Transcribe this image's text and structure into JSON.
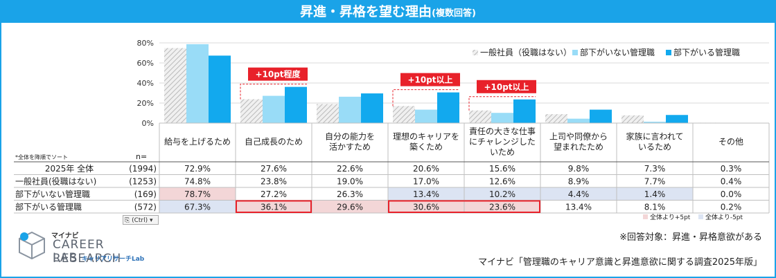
{
  "title": "昇進・昇格を望む理由",
  "title_sub": "(複数回答)",
  "sort_note": "*全体を降順でソート",
  "n_label": "n=",
  "chart_data": {
    "type": "bar",
    "ylim": [
      0,
      80
    ],
    "yticks": [
      "0%",
      "20%",
      "40%",
      "60%",
      "80%"
    ],
    "legend_position": "top-right",
    "categories": [
      [
        "給与を上げるため"
      ],
      [
        "自己成長のため"
      ],
      [
        "自分の能力を",
        "活かすため"
      ],
      [
        "理想のキャリアを",
        "築くため"
      ],
      [
        "責任の大きな仕事",
        "にチャレンジした",
        "いため"
      ],
      [
        "上司や同僚から",
        "望まれたため"
      ],
      [
        "家族に言われて",
        "いるため"
      ],
      [
        "その他"
      ]
    ],
    "series": [
      {
        "name": "一般社員（役職はない）",
        "color": "#cccccc",
        "values": [
          74.8,
          23.8,
          19.0,
          17.0,
          12.6,
          8.9,
          7.7,
          0.4
        ]
      },
      {
        "name": "部下がいない管理職",
        "color": "#99dcf7",
        "values": [
          78.7,
          27.2,
          26.3,
          13.4,
          10.2,
          4.4,
          1.4,
          0.0
        ]
      },
      {
        "name": "部下がいる管理職",
        "color": "#12a9ee",
        "values": [
          67.3,
          36.1,
          29.6,
          30.6,
          23.6,
          13.4,
          8.1,
          0.2
        ]
      }
    ],
    "annotations": [
      {
        "category_index": 1,
        "text": "+10pt程度"
      },
      {
        "category_index": 3,
        "text": "+10pt以上"
      },
      {
        "category_index": 4,
        "text": "+10pt以上"
      }
    ]
  },
  "table": {
    "rows": [
      {
        "label": "2025年 全体",
        "n": "(1994)",
        "values": [
          "72.9%",
          "27.6%",
          "22.6%",
          "20.6%",
          "15.6%",
          "9.8%",
          "7.3%",
          "0.3%"
        ],
        "hl": [
          "",
          "",
          "",
          "",
          "",
          "",
          "",
          ""
        ]
      },
      {
        "label": "一般社員(役職はない)",
        "n": "(1253)",
        "values": [
          "74.8%",
          "23.8%",
          "19.0%",
          "17.0%",
          "12.6%",
          "8.9%",
          "7.7%",
          "0.4%"
        ],
        "hl": [
          "",
          "",
          "",
          "",
          "",
          "",
          "",
          ""
        ]
      },
      {
        "label": "部下がいない管理職",
        "n": "(169)",
        "values": [
          "78.7%",
          "27.2%",
          "26.3%",
          "13.4%",
          "10.2%",
          "4.4%",
          "1.4%",
          "0.0%"
        ],
        "hl": [
          "up",
          "",
          "",
          "down",
          "down",
          "down",
          "down",
          ""
        ]
      },
      {
        "label": "部下がいる管理職",
        "n": "(572)",
        "values": [
          "67.3%",
          "36.1%",
          "29.6%",
          "30.6%",
          "23.6%",
          "13.4%",
          "8.1%",
          "0.2%"
        ],
        "hl": [
          "down",
          "up",
          "up",
          "up",
          "up",
          "",
          "",
          ""
        ]
      }
    ],
    "boxed_cells": [
      [
        3,
        1,
        1
      ],
      [
        3,
        3,
        4
      ]
    ]
  },
  "key_up": "全体より+5pt",
  "key_down": "全体より-5pt",
  "colors": {
    "up": "#f3d6d7",
    "down": "#dce4f3",
    "accent": "#1aa3e8",
    "alert": "#e8212a"
  },
  "ctrl_label": "(Ctrl) ▾",
  "logo": {
    "top": "マイナビ",
    "main": "CAREER RESEARCH",
    "sub1": "LAB",
    "sub2": "キャリアリサーチLab"
  },
  "note_right": "※回答対象：昇進・昇格意欲がある",
  "source": "マイナビ「管理職のキャリア意識と昇進意欲に関する調査2025年版」"
}
